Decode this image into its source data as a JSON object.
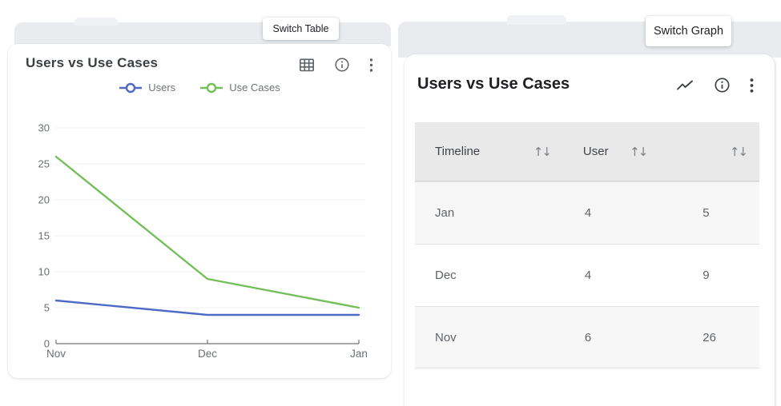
{
  "left_panel": {
    "tooltip": "Switch Table",
    "title": "Users vs Use Cases"
  },
  "right_panel": {
    "tooltip": "Switch Graph",
    "title": "Users vs Use Cases",
    "table": {
      "headers": [
        "Timeline",
        "User",
        ""
      ],
      "sort_icon": "↑↓",
      "rows": [
        [
          "Jan",
          "4",
          "5"
        ],
        [
          "Dec",
          "4",
          "9"
        ],
        [
          "Nov",
          "6",
          "26"
        ]
      ]
    }
  },
  "chart_data": {
    "type": "line",
    "title": "Users vs Use Cases",
    "categories": [
      "Nov",
      "Dec",
      "Jan"
    ],
    "series": [
      {
        "name": "Users",
        "color": "#4d6bc6",
        "values": [
          6,
          4,
          4
        ]
      },
      {
        "name": "Use Cases",
        "color": "#74bf5a",
        "values": [
          26,
          9,
          5
        ]
      }
    ],
    "ylim": [
      0,
      30
    ],
    "ytick_step": 5,
    "grid": true,
    "legend_position": "top"
  },
  "colors": {
    "table_header_bg": "#e9e9e9",
    "row_alt_bg": "#f7f7f7",
    "axis_text": "#6b6f76",
    "gridline": "#eef1f5"
  }
}
